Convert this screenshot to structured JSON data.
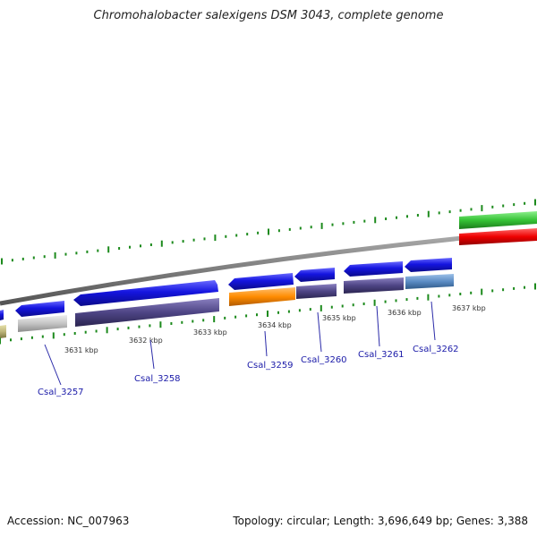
{
  "title": "Chromohalobacter salexigens DSM 3043, complete genome",
  "footer": {
    "accession": "Accession: NC_007963",
    "summary": "Topology: circular; Length: 3,696,649 bp; Genes: 3,388"
  },
  "colors": {
    "forward_gene": "#1515e0",
    "backbone": "#808080",
    "tick": "#1c8a1c",
    "gene_label": "#1a1aa8",
    "cds_gray": "#c4c4c4",
    "cds_olive": "#bdb57a",
    "cds_purple": "#4e4585",
    "cds_orange": "#ff8c00",
    "cds_steelblue": "#5b8cc4",
    "cds_green": "#36c336",
    "cds_red": "#ee0000"
  },
  "scale_labels": [
    "3631 kbp",
    "3632 kbp",
    "3633 kbp",
    "3634 kbp",
    "3635 kbp",
    "3636 kbp",
    "3637 kbp"
  ],
  "genes": [
    {
      "name": "Csal_3257",
      "strand_color": "cds_gray"
    },
    {
      "name": "Csal_3258",
      "strand_color": "cds_purple"
    },
    {
      "name": "Csal_3259",
      "strand_color": "cds_orange"
    },
    {
      "name": "Csal_3260",
      "strand_color": "cds_purple"
    },
    {
      "name": "Csal_3261",
      "strand_color": "cds_purple"
    },
    {
      "name": "Csal_3262",
      "strand_color": "cds_steelblue"
    }
  ]
}
